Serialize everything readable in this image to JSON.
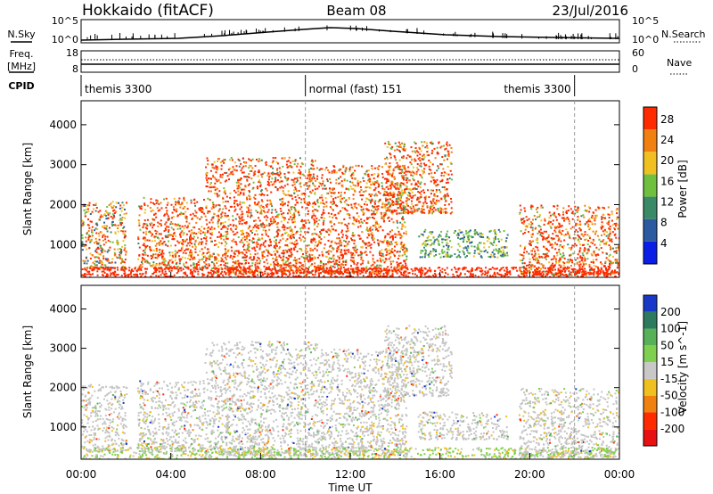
{
  "header": {
    "station": "Hokkaido (fitACF)",
    "beam": "Beam 08",
    "date": "23/Jul/2016"
  },
  "top_panels": {
    "nsky_label": "N.Sky",
    "nsky_ticks": [
      "10^5",
      "10^0"
    ],
    "nsearch_label": "N.Search",
    "nsearch_ticks": [
      "10^5",
      "10^0"
    ],
    "freq_label_line1": "Freq.",
    "freq_label_line2": "[MHz]",
    "freq_ticks": [
      "18",
      "8"
    ],
    "nave_label": "Nave",
    "nave_ticks": [
      "60",
      "0"
    ],
    "cpid_label": "CPID",
    "cpid_segments": [
      {
        "label": "themis 3300",
        "start_hour": 0,
        "end_hour": 10
      },
      {
        "label": "normal (fast) 151",
        "start_hour": 10,
        "end_hour": 22
      },
      {
        "label": "themis 3300",
        "start_hour": 22,
        "end_hour": 24
      }
    ]
  },
  "chart_data": [
    {
      "type": "heatmap",
      "panel": "power",
      "ylabel": "Slant Range [km]",
      "ylim": [
        180,
        4600
      ],
      "yticks": [
        "1000",
        "2000",
        "3000",
        "4000"
      ],
      "colorbar_label": "Power [dB]",
      "colorbar_ticks": [
        "4",
        "8",
        "12",
        "16",
        "20",
        "24",
        "28"
      ],
      "colorbar_colors": [
        "#0a1ee6",
        "#2c5aa0",
        "#3a8a68",
        "#70c040",
        "#f0c020",
        "#f08010",
        "#ff2a00"
      ],
      "regions": [
        {
          "t": [
            0.0,
            2.0
          ],
          "r": [
            400,
            2100
          ],
          "level": "mixed"
        },
        {
          "t": [
            2.5,
            5.5
          ],
          "r": [
            400,
            2200
          ],
          "level": "high"
        },
        {
          "t": [
            5.5,
            10.5
          ],
          "r": [
            300,
            3200
          ],
          "level": "high"
        },
        {
          "t": [
            10.5,
            14.5
          ],
          "r": [
            300,
            3000
          ],
          "level": "high"
        },
        {
          "t": [
            13.5,
            16.5
          ],
          "r": [
            1800,
            3600
          ],
          "level": "high"
        },
        {
          "t": [
            15.0,
            19.0
          ],
          "r": [
            700,
            1400
          ],
          "level": "low"
        },
        {
          "t": [
            19.5,
            24.0
          ],
          "r": [
            250,
            2000
          ],
          "level": "high"
        }
      ]
    },
    {
      "type": "heatmap",
      "panel": "velocity",
      "xlabel": "Time UT",
      "ylabel": "Slant Range [km]",
      "ylim": [
        180,
        4600
      ],
      "yticks": [
        "1000",
        "2000",
        "3000",
        "4000"
      ],
      "xticks": [
        "00:00",
        "04:00",
        "08:00",
        "12:00",
        "16:00",
        "20:00",
        "00:00"
      ],
      "xlim_hours": [
        0,
        24
      ],
      "colorbar_label": "Velocity [m s^-1]",
      "colorbar_ticks": [
        "200",
        "100",
        "50",
        "15",
        "-15",
        "-50",
        "-100",
        "-200"
      ],
      "colorbar_colors": [
        "#1838c8",
        "#2e7a5e",
        "#58b058",
        "#80d050",
        "#c8c8c8",
        "#f0c020",
        "#f08010",
        "#ff2a00",
        "#e81010"
      ],
      "dominant_color": "#c4c4c4"
    }
  ]
}
